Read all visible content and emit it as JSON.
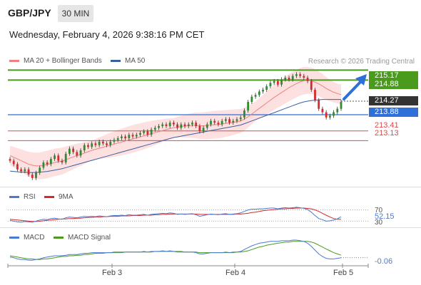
{
  "header": {
    "symbol": "GBP/JPY",
    "timeframe": "30 MIN",
    "datetime": "Wednesday, February 4, 2026 9:38:16 PM CET",
    "credit": "Research © 2026 Trading Central"
  },
  "legend": {
    "ma20_label": "MA 20 + Bollinger Bands",
    "ma50_label": "MA 50",
    "rsi_label": "RSI",
    "rsi_ma_label": "9MA",
    "macd_label": "MACD",
    "macd_signal_label": "MACD Signal"
  },
  "colors": {
    "up": "#2e8b2e",
    "down": "#d62a2a",
    "ma20": "#f08080",
    "ma50": "#3a5fa0",
    "bollinger_fill": "#fde1e1",
    "resistance": "#4a9a1e",
    "pivot": "#2e6fd8",
    "support": "#e04848",
    "rsi": "#4a7bd0",
    "rsi_ma": "#d62a2a",
    "macd": "#4a7bd0",
    "macd_signal": "#4a9a1e"
  },
  "levels": {
    "resistance_1": "215.17",
    "resistance_2": "214.88",
    "current": "214.27",
    "pivot": "213.88",
    "support_1": "213.41",
    "support_2": "213.13"
  },
  "indicators": {
    "rsi_value": "52.15",
    "rsi_level_70": "70",
    "rsi_level_30": "30",
    "macd_value": "-0.06"
  },
  "chart_data": {
    "type": "candlestick",
    "categories": [
      "Feb 3",
      "Feb 4",
      "Feb 5"
    ],
    "ylim": [
      211.8,
      215.3
    ],
    "close": [
      212.55,
      212.45,
      212.3,
      212.25,
      212.3,
      212.15,
      212.05,
      212.2,
      212.35,
      212.5,
      212.45,
      212.6,
      212.7,
      212.55,
      212.5,
      212.75,
      212.9,
      212.8,
      212.7,
      212.85,
      213.0,
      212.95,
      213.05,
      213.0,
      213.1,
      213.05,
      213.0,
      213.1,
      213.15,
      213.2,
      213.25,
      213.2,
      213.3,
      213.25,
      213.3,
      213.35,
      213.4,
      213.3,
      213.45,
      213.5,
      213.55,
      213.6,
      213.55,
      213.65,
      213.6,
      213.5,
      213.6,
      213.55,
      213.6,
      213.65,
      213.55,
      213.4,
      213.5,
      213.6,
      213.7,
      213.65,
      213.6,
      213.7,
      213.75,
      213.65,
      213.7,
      213.75,
      213.8,
      214.0,
      214.25,
      214.4,
      214.45,
      214.55,
      214.6,
      214.7,
      214.8,
      214.85,
      214.75,
      214.9,
      214.95,
      214.9,
      215.0,
      215.05,
      215.0,
      214.95,
      214.85,
      214.6,
      214.3,
      214.05,
      213.95,
      213.8,
      213.85,
      213.95,
      214.05,
      214.25
    ],
    "open": [
      212.6,
      212.55,
      212.45,
      212.3,
      212.25,
      212.3,
      212.15,
      212.05,
      212.2,
      212.35,
      212.5,
      212.45,
      212.6,
      212.7,
      212.55,
      212.5,
      212.75,
      212.9,
      212.8,
      212.7,
      212.85,
      213.0,
      212.95,
      213.05,
      213.0,
      213.1,
      213.05,
      213.0,
      213.1,
      213.15,
      213.2,
      213.25,
      213.2,
      213.3,
      213.25,
      213.3,
      213.35,
      213.4,
      213.3,
      213.45,
      213.5,
      213.55,
      213.6,
      213.55,
      213.65,
      213.6,
      213.5,
      213.6,
      213.55,
      213.6,
      213.65,
      213.55,
      213.4,
      213.5,
      213.6,
      213.7,
      213.65,
      213.6,
      213.7,
      213.75,
      213.65,
      213.7,
      213.75,
      213.8,
      214.0,
      214.25,
      214.4,
      214.45,
      214.55,
      214.6,
      214.7,
      214.8,
      214.85,
      214.75,
      214.9,
      214.95,
      214.9,
      215.0,
      215.05,
      215.0,
      214.95,
      214.85,
      214.6,
      214.3,
      214.05,
      213.95,
      213.8,
      213.85,
      213.95,
      214.05
    ],
    "ma20": [
      212.7,
      212.65,
      212.6,
      212.55,
      212.5,
      212.45,
      212.42,
      212.4,
      212.4,
      212.42,
      212.44,
      212.47,
      212.5,
      212.52,
      212.54,
      212.58,
      212.62,
      212.66,
      212.7,
      212.73,
      212.77,
      212.81,
      212.85,
      212.88,
      212.91,
      212.94,
      212.97,
      213.0,
      213.03,
      213.06,
      213.09,
      213.12,
      213.15,
      213.18,
      213.21,
      213.24,
      213.27,
      213.3,
      213.33,
      213.36,
      213.39,
      213.42,
      213.45,
      213.48,
      213.5,
      213.52,
      213.54,
      213.55,
      213.56,
      213.57,
      213.57,
      213.56,
      213.56,
      213.57,
      213.58,
      213.59,
      213.6,
      213.61,
      213.63,
      213.64,
      213.66,
      213.68,
      213.7,
      213.75,
      213.82,
      213.9,
      213.98,
      214.06,
      214.14,
      214.22,
      214.3,
      214.38,
      214.45,
      214.52,
      214.59,
      214.66,
      214.72,
      214.78,
      214.83,
      214.86,
      214.87,
      214.86,
      214.82,
      214.77,
      214.71,
      214.64,
      214.58,
      214.53,
      214.49,
      214.46
    ],
    "ma50": [
      212.25,
      212.24,
      212.23,
      212.22,
      212.22,
      212.21,
      212.21,
      212.21,
      212.22,
      212.23,
      212.24,
      212.26,
      212.28,
      212.3,
      212.32,
      212.35,
      212.38,
      212.41,
      212.44,
      212.47,
      212.5,
      212.53,
      212.56,
      212.59,
      212.62,
      212.65,
      212.68,
      212.71,
      212.74,
      212.77,
      212.8,
      212.83,
      212.86,
      212.89,
      212.92,
      212.95,
      212.98,
      213.01,
      213.04,
      213.07,
      213.1,
      213.13,
      213.16,
      213.19,
      213.22,
      213.24,
      213.26,
      213.28,
      213.3,
      213.32,
      213.34,
      213.36,
      213.38,
      213.4,
      213.42,
      213.44,
      213.46,
      213.48,
      213.5,
      213.52,
      213.54,
      213.56,
      213.58,
      213.62,
      213.66,
      213.7,
      213.74,
      213.78,
      213.82,
      213.86,
      213.9,
      213.94,
      213.98,
      214.02,
      214.06,
      214.1,
      214.14,
      214.18,
      214.22,
      214.25,
      214.27,
      214.29,
      214.3,
      214.31,
      214.32,
      214.32,
      214.32,
      214.32,
      214.32,
      214.32
    ],
    "rsi": [
      42,
      40,
      38,
      37,
      39,
      38,
      37,
      40,
      43,
      45,
      44,
      47,
      48,
      46,
      45,
      49,
      51,
      50,
      49,
      51,
      53,
      52,
      53,
      52,
      54,
      53,
      52,
      54,
      55,
      55,
      56,
      55,
      57,
      56,
      56,
      57,
      58,
      56,
      58,
      59,
      60,
      61,
      60,
      62,
      61,
      58,
      59,
      58,
      59,
      60,
      57,
      53,
      55,
      57,
      59,
      58,
      57,
      59,
      60,
      58,
      59,
      60,
      62,
      66,
      70,
      72,
      72,
      73,
      73,
      74,
      75,
      75,
      73,
      75,
      76,
      75,
      76,
      77,
      76,
      74,
      71,
      64,
      55,
      47,
      44,
      40,
      41,
      43,
      46,
      52
    ],
    "rsi_ma": [
      45,
      44,
      43,
      42,
      41,
      40,
      39,
      39,
      40,
      41,
      42,
      43,
      44,
      45,
      46,
      46,
      47,
      47,
      48,
      48,
      49,
      50,
      50,
      51,
      51,
      52,
      52,
      53,
      53,
      53,
      54,
      54,
      54,
      55,
      55,
      55,
      56,
      56,
      56,
      57,
      57,
      58,
      58,
      59,
      59,
      59,
      59,
      59,
      59,
      59,
      59,
      58,
      58,
      58,
      58,
      58,
      58,
      58,
      58,
      58,
      58,
      59,
      59,
      60,
      61,
      63,
      64,
      66,
      68,
      69,
      70,
      71,
      72,
      73,
      73,
      74,
      74,
      75,
      75,
      75,
      74,
      73,
      70,
      66,
      61,
      56,
      51,
      47,
      45,
      45
    ],
    "macd": [
      -0.05,
      -0.06,
      -0.08,
      -0.09,
      -0.09,
      -0.1,
      -0.1,
      -0.09,
      -0.08,
      -0.06,
      -0.05,
      -0.04,
      -0.03,
      -0.03,
      -0.03,
      -0.02,
      -0.01,
      -0.01,
      -0.01,
      0.0,
      0.01,
      0.01,
      0.02,
      0.02,
      0.02,
      0.02,
      0.02,
      0.02,
      0.03,
      0.03,
      0.03,
      0.03,
      0.03,
      0.03,
      0.03,
      0.03,
      0.04,
      0.03,
      0.04,
      0.04,
      0.04,
      0.05,
      0.04,
      0.05,
      0.04,
      0.03,
      0.03,
      0.03,
      0.03,
      0.03,
      0.02,
      0.0,
      0.0,
      0.01,
      0.02,
      0.02,
      0.02,
      0.02,
      0.03,
      0.02,
      0.03,
      0.03,
      0.04,
      0.07,
      0.1,
      0.13,
      0.15,
      0.17,
      0.18,
      0.19,
      0.2,
      0.2,
      0.2,
      0.21,
      0.21,
      0.21,
      0.22,
      0.22,
      0.21,
      0.2,
      0.17,
      0.12,
      0.06,
      0.0,
      -0.04,
      -0.07,
      -0.08,
      -0.08,
      -0.07,
      -0.06
    ],
    "macd_signal": [
      -0.03,
      -0.04,
      -0.05,
      -0.06,
      -0.07,
      -0.08,
      -0.08,
      -0.09,
      -0.09,
      -0.08,
      -0.08,
      -0.07,
      -0.06,
      -0.05,
      -0.04,
      -0.04,
      -0.03,
      -0.03,
      -0.02,
      -0.02,
      -0.01,
      -0.01,
      0.0,
      0.01,
      0.01,
      0.01,
      0.02,
      0.02,
      0.02,
      0.02,
      0.02,
      0.03,
      0.03,
      0.03,
      0.03,
      0.03,
      0.03,
      0.03,
      0.03,
      0.04,
      0.04,
      0.04,
      0.04,
      0.04,
      0.04,
      0.04,
      0.04,
      0.03,
      0.03,
      0.03,
      0.03,
      0.02,
      0.02,
      0.02,
      0.02,
      0.02,
      0.02,
      0.02,
      0.02,
      0.02,
      0.02,
      0.03,
      0.03,
      0.04,
      0.05,
      0.07,
      0.09,
      0.11,
      0.12,
      0.14,
      0.15,
      0.16,
      0.17,
      0.18,
      0.19,
      0.19,
      0.2,
      0.2,
      0.2,
      0.2,
      0.2,
      0.19,
      0.17,
      0.14,
      0.11,
      0.08,
      0.05,
      0.02,
      0.0,
      -0.02
    ]
  }
}
